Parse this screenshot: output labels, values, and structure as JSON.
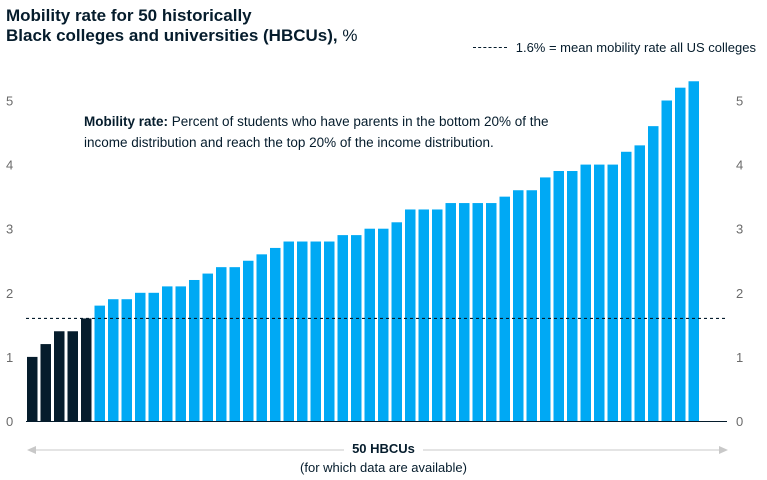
{
  "chart_data": {
    "type": "bar",
    "title_line1": "Mobility rate for 50 historically",
    "title_line2": "Black colleges and universities (HBCUs),",
    "title_unit": "%",
    "legend_text": "1.6% = mean mobility rate all US colleges",
    "reference_line": 1.6,
    "annotation_bold": "Mobility rate:",
    "annotation_text": "Percent of students who have parents in the bottom 20% of the income distribution and reach the top 20% of the income distribution.",
    "xlabel": "50 HBCUs",
    "xlabel_sub": "(for which data are available)",
    "ylim": [
      0,
      5.5
    ],
    "yticks": [
      0,
      1,
      2,
      3,
      4,
      5
    ],
    "highlight_color": "#051c2c",
    "bar_color": "#00a9f4",
    "highlight_rule": "values at or below the 1.6% mean are dark",
    "values": [
      1.0,
      1.2,
      1.4,
      1.4,
      1.6,
      1.8,
      1.9,
      1.9,
      2.0,
      2.0,
      2.1,
      2.1,
      2.2,
      2.3,
      2.4,
      2.4,
      2.5,
      2.6,
      2.7,
      2.8,
      2.8,
      2.8,
      2.8,
      2.9,
      2.9,
      3.0,
      3.0,
      3.1,
      3.3,
      3.3,
      3.3,
      3.4,
      3.4,
      3.4,
      3.4,
      3.5,
      3.6,
      3.6,
      3.8,
      3.9,
      3.9,
      4.0,
      4.0,
      4.0,
      4.2,
      4.3,
      4.6,
      5.0,
      5.2,
      5.3
    ]
  }
}
